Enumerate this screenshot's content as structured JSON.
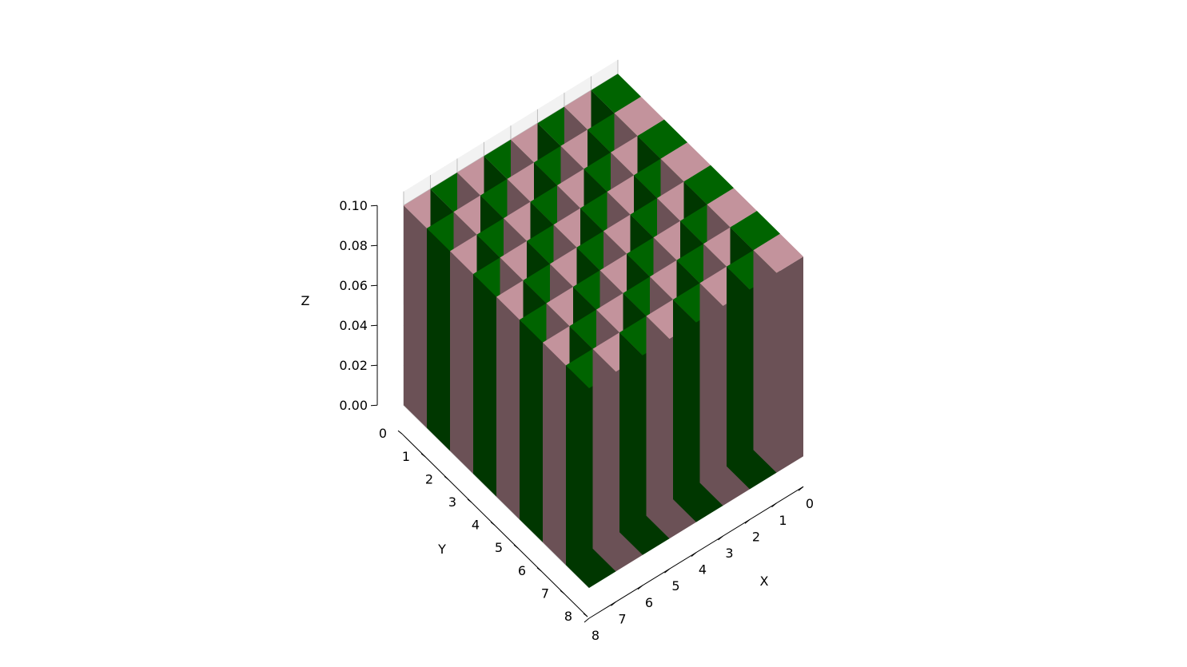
{
  "chart_data": {
    "type": "bar3d",
    "title": "",
    "xlabel": "X",
    "ylabel": "Y",
    "zlabel": "Z",
    "x_ticks": [
      "0",
      "1",
      "2",
      "3",
      "4",
      "5",
      "6",
      "7",
      "8"
    ],
    "y_ticks": [
      "0",
      "1",
      "2",
      "3",
      "4",
      "5",
      "6",
      "7",
      "8"
    ],
    "z_ticks": [
      "0.00",
      "0.02",
      "0.04",
      "0.06",
      "0.08",
      "0.10"
    ],
    "xlim": [
      0,
      8
    ],
    "ylim": [
      0,
      8
    ],
    "zlim": [
      0,
      0.1
    ],
    "grid": true,
    "bar_height": 0.1,
    "bar_width": 1,
    "grid_size": 8,
    "pattern": "checkerboard: (x + y) even = green, odd = pink",
    "colors": {
      "green": "#006400",
      "pink": "#C3939C",
      "pane": "#F2F2F2",
      "gridline": "#BFBFBF"
    }
  }
}
